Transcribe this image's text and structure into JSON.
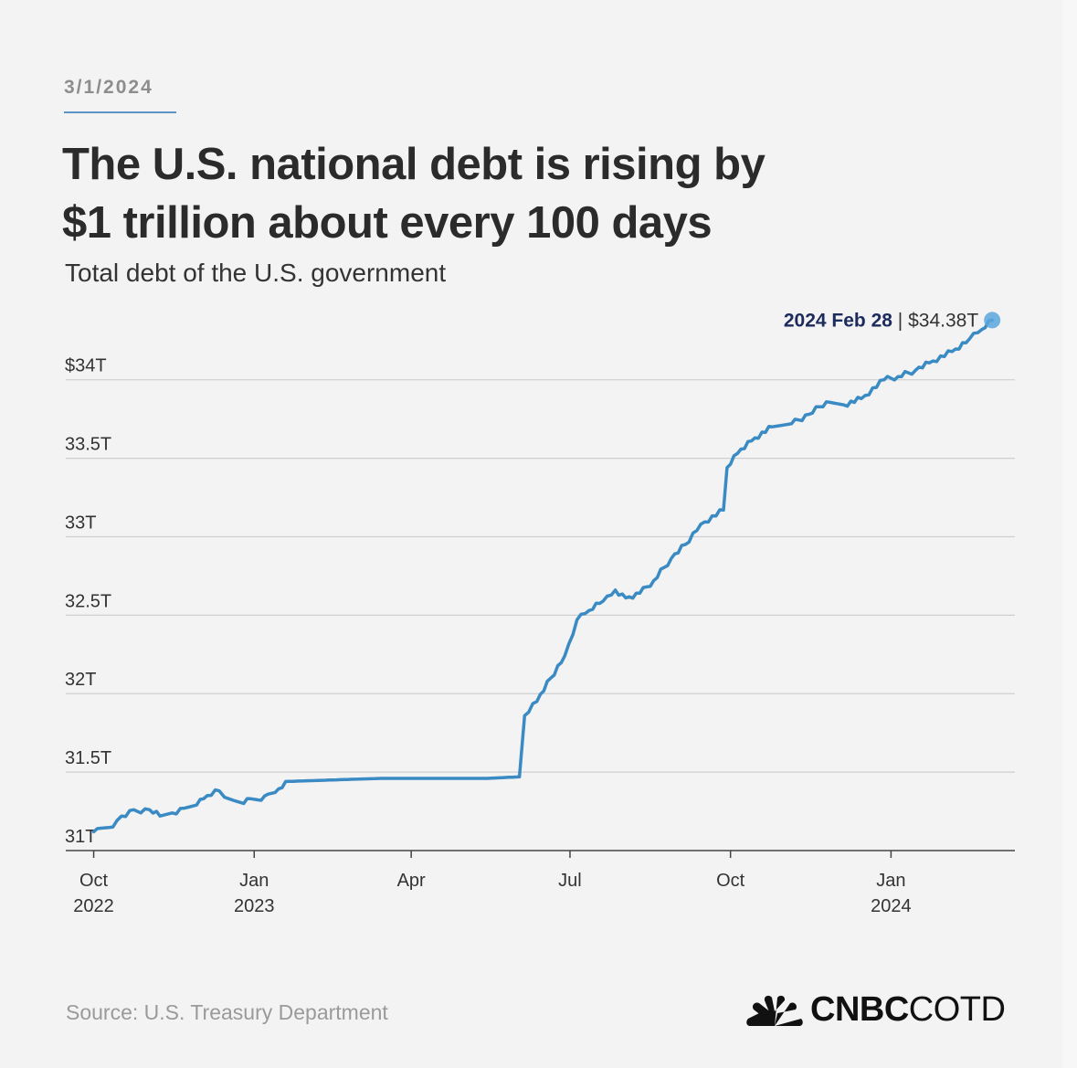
{
  "header": {
    "date": "3/1/2024",
    "title_line1": "The U.S. national debt is rising by",
    "title_line2": "$1 trillion about every 100 days",
    "subtitle": "Total debt of the U.S. government"
  },
  "footer": {
    "source": "Source: U.S. Treasury Department",
    "brand_bold": "CNBC",
    "brand_light": "COTD"
  },
  "colors": {
    "line": "#3a8ac3",
    "endpoint": "#5aa6dc",
    "callout_bold": "#1d2a5c",
    "grid": "#cfcfd2",
    "axis": "#444444"
  },
  "chart_data": {
    "type": "line",
    "title": "The U.S. national debt is rising by $1 trillion about every 100 days",
    "subtitle": "Total debt of the U.S. government",
    "ylabel": "",
    "xlabel": "",
    "ylim": [
      31,
      34.4
    ],
    "xlim": [
      "2022-09-15",
      "2024-03-12"
    ],
    "grid": true,
    "y_ticks": [
      31,
      31.5,
      32,
      32.5,
      33,
      33.5,
      34
    ],
    "y_tick_labels": [
      "31T",
      "31.5T",
      "32T",
      "32.5T",
      "33T",
      "33.5T",
      "$34T"
    ],
    "x_ticks": [
      {
        "date": "2022-10-01",
        "label1": "Oct",
        "label2": "2022"
      },
      {
        "date": "2023-01-01",
        "label1": "Jan",
        "label2": "2023"
      },
      {
        "date": "2023-04-01",
        "label1": "Apr",
        "label2": ""
      },
      {
        "date": "2023-07-01",
        "label1": "Jul",
        "label2": ""
      },
      {
        "date": "2023-10-01",
        "label1": "Oct",
        "label2": ""
      },
      {
        "date": "2024-01-01",
        "label1": "Jan",
        "label2": "2024"
      }
    ],
    "annotation": {
      "date_label": "2024 Feb 28",
      "value_label": "$34.38T",
      "date": "2024-02-28",
      "value": 34.38
    },
    "series": [
      {
        "units": "trillions USD",
        "points": [
          [
            "2022-10-01",
            31.12
          ],
          [
            "2022-10-03",
            31.14
          ],
          [
            "2022-10-12",
            31.15
          ],
          [
            "2022-10-17",
            31.22
          ],
          [
            "2022-10-24",
            31.26
          ],
          [
            "2022-10-28",
            31.24
          ],
          [
            "2022-11-02",
            31.26
          ],
          [
            "2022-11-08",
            31.22
          ],
          [
            "2022-11-15",
            31.24
          ],
          [
            "2022-11-22",
            31.27
          ],
          [
            "2022-11-29",
            31.29
          ],
          [
            "2022-12-05",
            31.35
          ],
          [
            "2022-12-12",
            31.38
          ],
          [
            "2022-12-15",
            31.34
          ],
          [
            "2022-12-20",
            31.32
          ],
          [
            "2022-12-26",
            31.3
          ],
          [
            "2022-12-30",
            31.33
          ],
          [
            "2023-01-05",
            31.32
          ],
          [
            "2023-01-09",
            31.36
          ],
          [
            "2023-01-13",
            31.37
          ],
          [
            "2023-01-19",
            31.44
          ],
          [
            "2023-02-15",
            31.45
          ],
          [
            "2023-03-15",
            31.46
          ],
          [
            "2023-04-15",
            31.46
          ],
          [
            "2023-05-15",
            31.46
          ],
          [
            "2023-06-02",
            31.47
          ],
          [
            "2023-06-05",
            31.86
          ],
          [
            "2023-06-12",
            31.95
          ],
          [
            "2023-06-20",
            32.1
          ],
          [
            "2023-06-28",
            32.24
          ],
          [
            "2023-07-05",
            32.47
          ],
          [
            "2023-07-12",
            32.53
          ],
          [
            "2023-07-20",
            32.59
          ],
          [
            "2023-07-27",
            32.66
          ],
          [
            "2023-08-02",
            32.61
          ],
          [
            "2023-08-10",
            32.64
          ],
          [
            "2023-08-18",
            32.72
          ],
          [
            "2023-08-28",
            32.86
          ],
          [
            "2023-09-05",
            32.95
          ],
          [
            "2023-09-14",
            33.08
          ],
          [
            "2023-09-27",
            33.17
          ],
          [
            "2023-09-29",
            33.44
          ],
          [
            "2023-10-05",
            33.53
          ],
          [
            "2023-10-15",
            33.63
          ],
          [
            "2023-10-25",
            33.7
          ],
          [
            "2023-11-05",
            33.72
          ],
          [
            "2023-11-15",
            33.78
          ],
          [
            "2023-11-25",
            33.86
          ],
          [
            "2023-12-05",
            33.84
          ],
          [
            "2023-12-15",
            33.88
          ],
          [
            "2023-12-28",
            34.0
          ],
          [
            "2024-01-05",
            34.02
          ],
          [
            "2024-01-15",
            34.06
          ],
          [
            "2024-01-25",
            34.12
          ],
          [
            "2024-02-05",
            34.18
          ],
          [
            "2024-02-15",
            34.26
          ],
          [
            "2024-02-22",
            34.32
          ],
          [
            "2024-02-28",
            34.38
          ]
        ]
      }
    ]
  }
}
